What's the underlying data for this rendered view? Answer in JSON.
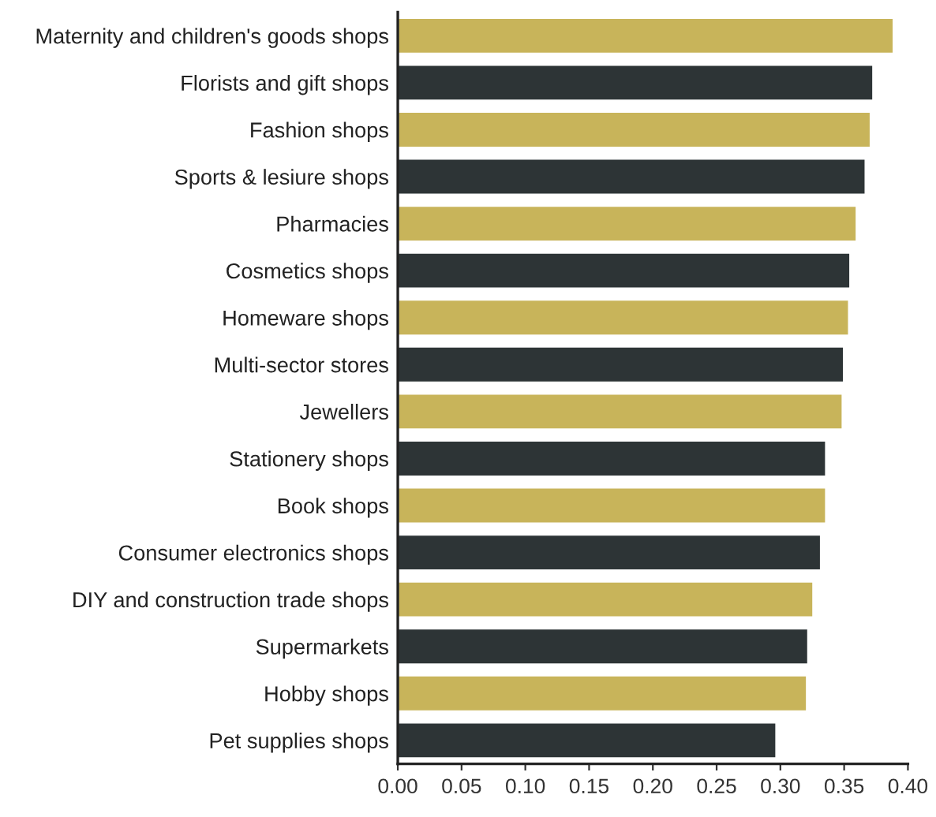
{
  "chart_data": {
    "type": "bar",
    "orientation": "horizontal",
    "categories": [
      "Maternity and children's goods shops",
      "Florists and gift shops",
      "Fashion shops",
      "Sports & lesiure shops",
      "Pharmacies",
      "Cosmetics shops",
      "Homeware shops",
      "Multi-sector stores",
      "Jewellers",
      "Stationery shops",
      "Book shops",
      "Consumer electronics shops",
      "DIY and construction trade shops",
      "Supermarkets",
      "Hobby shops",
      "Pet supplies shops"
    ],
    "values": [
      0.388,
      0.372,
      0.37,
      0.366,
      0.359,
      0.354,
      0.353,
      0.349,
      0.348,
      0.335,
      0.335,
      0.331,
      0.325,
      0.321,
      0.32,
      0.296
    ],
    "colors": [
      "#c8b45a",
      "#2d3436",
      "#c8b45a",
      "#2d3436",
      "#c8b45a",
      "#2d3436",
      "#c8b45a",
      "#2d3436",
      "#c8b45a",
      "#2d3436",
      "#c8b45a",
      "#2d3436",
      "#c8b45a",
      "#2d3436",
      "#c8b45a",
      "#2d3436"
    ],
    "xlim": [
      0,
      0.4
    ],
    "xticks": [
      {
        "value": 0,
        "label": "0.00"
      },
      {
        "value": 0.05,
        "label": "0.05"
      },
      {
        "value": 0.1,
        "label": "0.10"
      },
      {
        "value": 0.15,
        "label": "0.15"
      },
      {
        "value": 0.2,
        "label": "0.20"
      },
      {
        "value": 0.25,
        "label": "0.25"
      },
      {
        "value": 0.3,
        "label": "0.30"
      },
      {
        "value": 0.35,
        "label": "0.35"
      },
      {
        "value": 0.4,
        "label": "0.40"
      }
    ],
    "grid": false,
    "legend": false
  }
}
